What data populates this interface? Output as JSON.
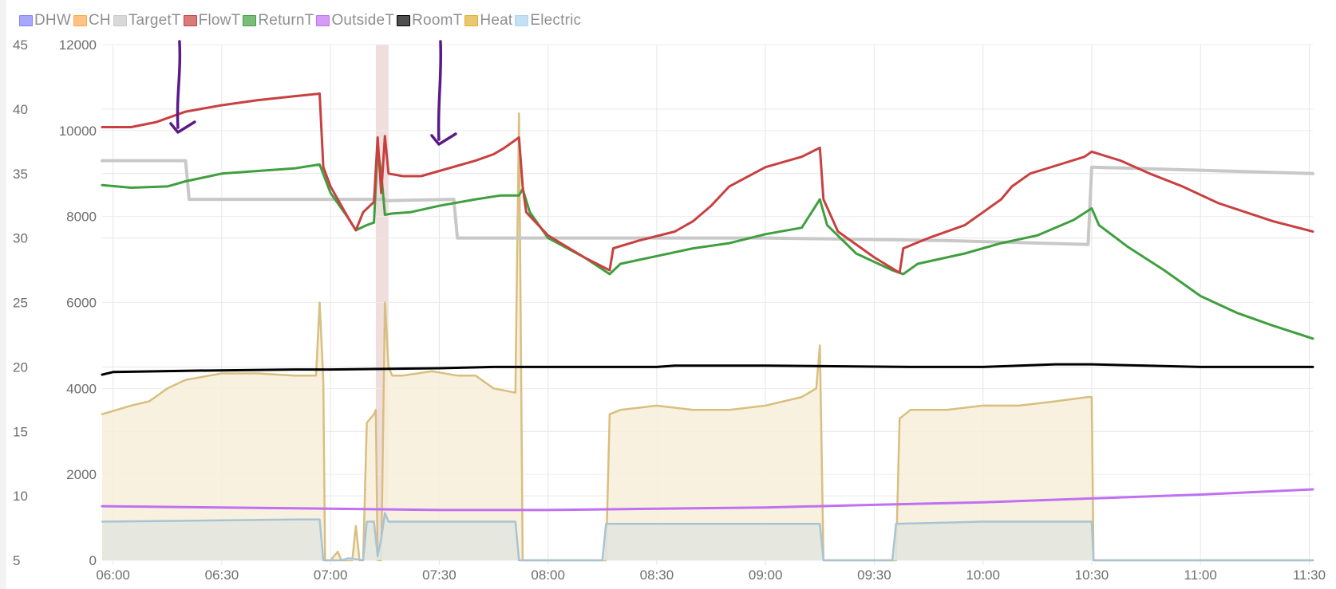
{
  "legend": [
    {
      "name": "DHW",
      "color": "#8080ff"
    },
    {
      "name": "CH",
      "color": "#ffa64d"
    },
    {
      "name": "TargetT",
      "color": "#c8c8c8"
    },
    {
      "name": "FlowT",
      "color": "#c84040"
    },
    {
      "name": "ReturnT",
      "color": "#3f9f3f"
    },
    {
      "name": "OutsideT",
      "color": "#c070f0"
    },
    {
      "name": "RoomT",
      "color": "#000000"
    },
    {
      "name": "Heat",
      "color": "#e0b030"
    },
    {
      "name": "Electric",
      "color": "#a8d4f0"
    }
  ],
  "chart_data": {
    "type": "line",
    "x_unit": "time (HH:MM)",
    "x_ticks": [
      "06:00",
      "06:30",
      "07:00",
      "07:30",
      "08:00",
      "08:30",
      "09:00",
      "09:30",
      "10:00",
      "10:30",
      "11:00",
      "11:30"
    ],
    "x_range": [
      "05:57",
      "11:31"
    ],
    "y_axes": [
      {
        "id": "temp",
        "range": [
          5,
          45
        ],
        "ticks": [
          5,
          10,
          15,
          20,
          25,
          30,
          35,
          40,
          45
        ]
      },
      {
        "id": "power",
        "range": [
          0,
          12000
        ],
        "ticks": [
          0,
          2000,
          4000,
          6000,
          8000,
          10000,
          12000
        ]
      }
    ],
    "grid": true,
    "legend_position": "top-left",
    "highlight_band": {
      "from": "07:12.5",
      "to": "07:16",
      "color": "#f0dede"
    },
    "annotations": [
      {
        "type": "arrow",
        "color": "#5a1a8a",
        "at": "06:19"
      },
      {
        "type": "arrow",
        "color": "#5a1a8a",
        "at": "07:31"
      }
    ],
    "series": [
      {
        "name": "TargetT",
        "axis": "temp",
        "color": "#c8c8c8",
        "width": 4,
        "points": [
          [
            "05:57",
            36.0
          ],
          [
            "06:20",
            36.0
          ],
          [
            "06:21",
            33.0
          ],
          [
            "07:15",
            33.0
          ],
          [
            "07:15.5",
            32.9
          ],
          [
            "07:34",
            33.0
          ],
          [
            "07:35",
            30.0
          ],
          [
            "09:00",
            30.0
          ],
          [
            "09:50",
            29.8
          ],
          [
            "10:29",
            29.5
          ],
          [
            "10:30",
            35.5
          ],
          [
            "11:31",
            35.0
          ]
        ]
      },
      {
        "name": "FlowT",
        "axis": "temp",
        "color": "#c84040",
        "width": 3,
        "points": [
          [
            "05:57",
            38.6
          ],
          [
            "06:05",
            38.6
          ],
          [
            "06:12",
            39.0
          ],
          [
            "06:20",
            39.8
          ],
          [
            "06:30",
            40.3
          ],
          [
            "06:40",
            40.7
          ],
          [
            "06:50",
            41.0
          ],
          [
            "06:57",
            41.2
          ],
          [
            "06:58",
            35.5
          ],
          [
            "07:00",
            34.0
          ],
          [
            "07:05",
            31.5
          ],
          [
            "07:07",
            30.6
          ],
          [
            "07:09",
            32.0
          ],
          [
            "07:12",
            32.8
          ],
          [
            "07:13",
            37.8
          ],
          [
            "07:14",
            33.5
          ],
          [
            "07:15",
            37.9
          ],
          [
            "07:16",
            35.0
          ],
          [
            "07:20",
            34.8
          ],
          [
            "07:25",
            34.8
          ],
          [
            "07:30",
            35.2
          ],
          [
            "07:35",
            35.6
          ],
          [
            "07:40",
            36.0
          ],
          [
            "07:45",
            36.5
          ],
          [
            "07:48",
            37.0
          ],
          [
            "07:52",
            37.8
          ],
          [
            "07:53",
            34.0
          ],
          [
            "07:54",
            32.0
          ],
          [
            "08:00",
            30.2
          ],
          [
            "08:10",
            28.5
          ],
          [
            "08:17",
            27.5
          ],
          [
            "08:18",
            29.2
          ],
          [
            "08:25",
            29.8
          ],
          [
            "08:35",
            30.5
          ],
          [
            "08:40",
            31.3
          ],
          [
            "08:45",
            32.5
          ],
          [
            "08:50",
            34.0
          ],
          [
            "09:00",
            35.5
          ],
          [
            "09:10",
            36.3
          ],
          [
            "09:15",
            37.0
          ],
          [
            "09:16",
            33.0
          ],
          [
            "09:20",
            30.5
          ],
          [
            "09:30",
            28.5
          ],
          [
            "09:37",
            27.3
          ],
          [
            "09:38",
            29.2
          ],
          [
            "09:45",
            30.0
          ],
          [
            "09:55",
            31.0
          ],
          [
            "10:00",
            32.0
          ],
          [
            "10:05",
            33.0
          ],
          [
            "10:08",
            34.0
          ],
          [
            "10:13",
            35.0
          ],
          [
            "10:20",
            35.6
          ],
          [
            "10:28",
            36.3
          ],
          [
            "10:30",
            36.7
          ],
          [
            "10:38",
            36.0
          ],
          [
            "10:46",
            35.0
          ],
          [
            "10:55",
            34.0
          ],
          [
            "11:05",
            32.7
          ],
          [
            "11:20",
            31.3
          ],
          [
            "11:31",
            30.5
          ]
        ]
      },
      {
        "name": "ReturnT",
        "axis": "temp",
        "color": "#3f9f3f",
        "width": 3,
        "points": [
          [
            "05:57",
            34.1
          ],
          [
            "06:05",
            33.9
          ],
          [
            "06:15",
            34.0
          ],
          [
            "06:20",
            34.4
          ],
          [
            "06:30",
            35.0
          ],
          [
            "06:40",
            35.2
          ],
          [
            "06:50",
            35.4
          ],
          [
            "06:57",
            35.7
          ],
          [
            "07:00",
            33.5
          ],
          [
            "07:05",
            31.5
          ],
          [
            "07:07",
            30.6
          ],
          [
            "07:10",
            31.0
          ],
          [
            "07:12",
            31.2
          ],
          [
            "07:13",
            37.0
          ],
          [
            "07:14",
            35.0
          ],
          [
            "07:15",
            31.8
          ],
          [
            "07:17",
            31.9
          ],
          [
            "07:22",
            32.0
          ],
          [
            "07:30",
            32.5
          ],
          [
            "07:40",
            33.0
          ],
          [
            "07:47",
            33.3
          ],
          [
            "07:52",
            33.3
          ],
          [
            "07:53",
            33.8
          ],
          [
            "07:55",
            32.0
          ],
          [
            "08:00",
            30.0
          ],
          [
            "08:10",
            28.5
          ],
          [
            "08:17",
            27.2
          ],
          [
            "08:20",
            28.0
          ],
          [
            "08:30",
            28.6
          ],
          [
            "08:40",
            29.2
          ],
          [
            "08:50",
            29.6
          ],
          [
            "09:00",
            30.3
          ],
          [
            "09:10",
            30.8
          ],
          [
            "09:15",
            33.0
          ],
          [
            "09:17",
            31.0
          ],
          [
            "09:25",
            28.8
          ],
          [
            "09:35",
            27.5
          ],
          [
            "09:38",
            27.2
          ],
          [
            "09:42",
            28.0
          ],
          [
            "09:55",
            28.8
          ],
          [
            "10:05",
            29.6
          ],
          [
            "10:15",
            30.2
          ],
          [
            "10:25",
            31.4
          ],
          [
            "10:30",
            32.3
          ],
          [
            "10:32",
            31.0
          ],
          [
            "10:40",
            29.3
          ],
          [
            "10:50",
            27.5
          ],
          [
            "11:00",
            25.5
          ],
          [
            "11:10",
            24.2
          ],
          [
            "11:20",
            23.2
          ],
          [
            "11:31",
            22.2
          ]
        ]
      },
      {
        "name": "RoomT",
        "axis": "temp",
        "color": "#000000",
        "width": 3,
        "points": [
          [
            "05:57",
            19.4
          ],
          [
            "06:00",
            19.6
          ],
          [
            "06:20",
            19.7
          ],
          [
            "06:50",
            19.8
          ],
          [
            "07:00",
            19.8
          ],
          [
            "07:30",
            19.9
          ],
          [
            "07:45",
            20.0
          ],
          [
            "08:00",
            20.0
          ],
          [
            "08:30",
            20.0
          ],
          [
            "08:35",
            20.1
          ],
          [
            "09:00",
            20.1
          ],
          [
            "09:40",
            20.0
          ],
          [
            "10:00",
            20.0
          ],
          [
            "10:10",
            20.1
          ],
          [
            "10:20",
            20.2
          ],
          [
            "10:30",
            20.2
          ],
          [
            "10:45",
            20.1
          ],
          [
            "11:00",
            20.0
          ],
          [
            "11:31",
            20.0
          ]
        ]
      },
      {
        "name": "OutsideT",
        "axis": "temp",
        "color": "#c070f0",
        "width": 3,
        "points": [
          [
            "05:57",
            9.2
          ],
          [
            "06:30",
            9.1
          ],
          [
            "07:00",
            9.0
          ],
          [
            "07:30",
            8.9
          ],
          [
            "08:00",
            8.9
          ],
          [
            "08:30",
            9.0
          ],
          [
            "09:00",
            9.1
          ],
          [
            "09:30",
            9.3
          ],
          [
            "10:00",
            9.5
          ],
          [
            "10:30",
            9.8
          ],
          [
            "11:00",
            10.1
          ],
          [
            "11:31",
            10.5
          ]
        ]
      },
      {
        "name": "Heat",
        "axis": "power",
        "color": "#d8bf80",
        "fill": "#f8efd9",
        "width": 2.5,
        "points": [
          [
            "05:57",
            3400
          ],
          [
            "06:05",
            3600
          ],
          [
            "06:10",
            3700
          ],
          [
            "06:15",
            4000
          ],
          [
            "06:20",
            4200
          ],
          [
            "06:30",
            4350
          ],
          [
            "06:40",
            4350
          ],
          [
            "06:50",
            4300
          ],
          [
            "06:56",
            4300
          ],
          [
            "06:57",
            6000
          ],
          [
            "06:58",
            4200
          ],
          [
            "06:58.5",
            0
          ],
          [
            "07:00",
            0
          ],
          [
            "07:02",
            200
          ],
          [
            "07:03",
            0
          ],
          [
            "07:05",
            0
          ],
          [
            "07:06",
            0
          ],
          [
            "07:07",
            800
          ],
          [
            "07:08",
            0
          ],
          [
            "07:09",
            0
          ],
          [
            "07:10",
            3200
          ],
          [
            "07:12",
            3400
          ],
          [
            "07:12.5",
            3500
          ],
          [
            "07:13",
            0
          ],
          [
            "07:14",
            0
          ],
          [
            "07:15",
            6000
          ],
          [
            "07:16",
            4500
          ],
          [
            "07:17",
            4300
          ],
          [
            "07:20",
            4300
          ],
          [
            "07:28",
            4400
          ],
          [
            "07:35",
            4300
          ],
          [
            "07:40",
            4300
          ],
          [
            "07:45",
            4000
          ],
          [
            "07:51",
            3900
          ],
          [
            "07:52",
            10400
          ],
          [
            "07:53",
            0
          ],
          [
            "08:16",
            0
          ],
          [
            "08:17",
            3400
          ],
          [
            "08:20",
            3500
          ],
          [
            "08:30",
            3600
          ],
          [
            "08:40",
            3500
          ],
          [
            "08:50",
            3500
          ],
          [
            "09:00",
            3600
          ],
          [
            "09:10",
            3800
          ],
          [
            "09:14",
            4000
          ],
          [
            "09:15",
            5000
          ],
          [
            "09:16",
            0
          ],
          [
            "09:36",
            0
          ],
          [
            "09:37",
            3300
          ],
          [
            "09:40",
            3500
          ],
          [
            "09:50",
            3500
          ],
          [
            "10:00",
            3600
          ],
          [
            "10:10",
            3600
          ],
          [
            "10:20",
            3700
          ],
          [
            "10:29",
            3800
          ],
          [
            "10:30",
            3800
          ],
          [
            "10:30.5",
            0
          ],
          [
            "11:31",
            0
          ]
        ]
      },
      {
        "name": "Electric",
        "axis": "power",
        "color": "#a8c4d4",
        "fill": "#e3e6e0",
        "width": 2.5,
        "points": [
          [
            "05:57",
            900
          ],
          [
            "06:50",
            950
          ],
          [
            "06:57",
            950
          ],
          [
            "06:58",
            0
          ],
          [
            "07:03",
            0
          ],
          [
            "07:05",
            50
          ],
          [
            "07:09",
            0
          ],
          [
            "07:10",
            900
          ],
          [
            "07:12",
            900
          ],
          [
            "07:13",
            100
          ],
          [
            "07:14",
            500
          ],
          [
            "07:15",
            1100
          ],
          [
            "07:16",
            900
          ],
          [
            "07:51",
            900
          ],
          [
            "07:52",
            0
          ],
          [
            "08:15",
            0
          ],
          [
            "08:16",
            850
          ],
          [
            "08:40",
            850
          ],
          [
            "09:15",
            850
          ],
          [
            "09:16",
            0
          ],
          [
            "09:35",
            0
          ],
          [
            "09:36",
            850
          ],
          [
            "10:00",
            900
          ],
          [
            "10:30",
            900
          ],
          [
            "10:30.5",
            0
          ],
          [
            "11:31",
            0
          ]
        ]
      }
    ]
  }
}
